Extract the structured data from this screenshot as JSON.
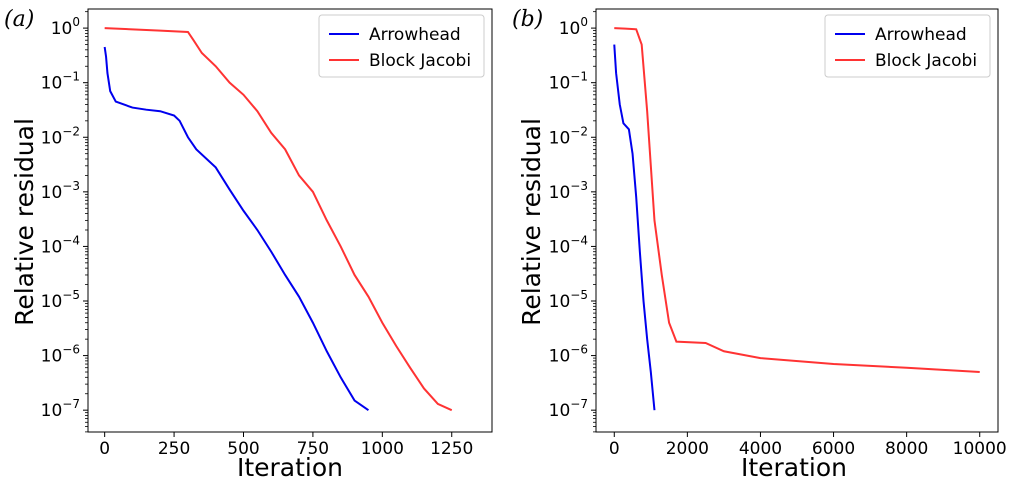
{
  "chart_data": [
    {
      "type": "line",
      "panel_label": "(a)",
      "xlabel": "Iteration",
      "ylabel": "Relative residual",
      "xlim": [
        -60,
        1395
      ],
      "ylim_log10": [
        -7.4,
        0.35
      ],
      "yscale": "log",
      "xticks": [
        0,
        250,
        500,
        750,
        1000,
        1250
      ],
      "yticks_exp": [
        0,
        -1,
        -2,
        -3,
        -4,
        -5,
        -6,
        -7
      ],
      "grid": false,
      "legend": {
        "position": "top-right",
        "entries": [
          {
            "label": "Arrowhead",
            "color": "#0000ee"
          },
          {
            "label": "Block Jacobi",
            "color": "#ff3333"
          }
        ]
      },
      "series": [
        {
          "name": "Arrowhead",
          "color": "#0000ee",
          "points": [
            [
              0,
              0.45
            ],
            [
              5,
              0.3
            ],
            [
              10,
              0.15
            ],
            [
              20,
              0.07
            ],
            [
              40,
              0.045
            ],
            [
              100,
              0.035
            ],
            [
              150,
              0.032
            ],
            [
              200,
              0.03
            ],
            [
              250,
              0.025
            ],
            [
              270,
              0.02
            ],
            [
              300,
              0.01
            ],
            [
              330,
              0.006
            ],
            [
              400,
              0.0028
            ],
            [
              450,
              0.0011
            ],
            [
              500,
              0.00045
            ],
            [
              550,
              0.0002
            ],
            [
              600,
              8e-05
            ],
            [
              650,
              3e-05
            ],
            [
              700,
              1.2e-05
            ],
            [
              750,
              4e-06
            ],
            [
              800,
              1.2e-06
            ],
            [
              850,
              4e-07
            ],
            [
              900,
              1.5e-07
            ],
            [
              950,
              1e-07
            ]
          ]
        },
        {
          "name": "Block Jacobi",
          "color": "#ff3333",
          "points": [
            [
              0,
              1.0
            ],
            [
              100,
              0.95
            ],
            [
              200,
              0.9
            ],
            [
              300,
              0.85
            ],
            [
              320,
              0.6
            ],
            [
              350,
              0.35
            ],
            [
              400,
              0.2
            ],
            [
              450,
              0.1
            ],
            [
              500,
              0.06
            ],
            [
              550,
              0.03
            ],
            [
              600,
              0.012
            ],
            [
              650,
              0.006
            ],
            [
              700,
              0.002
            ],
            [
              750,
              0.001
            ],
            [
              800,
              0.0003
            ],
            [
              850,
              0.0001
            ],
            [
              900,
              3e-05
            ],
            [
              950,
              1.2e-05
            ],
            [
              1000,
              4e-06
            ],
            [
              1050,
              1.5e-06
            ],
            [
              1100,
              6e-07
            ],
            [
              1150,
              2.5e-07
            ],
            [
              1200,
              1.3e-07
            ],
            [
              1250,
              1e-07
            ]
          ]
        }
      ]
    },
    {
      "type": "line",
      "panel_label": "(b)",
      "xlabel": "Iteration",
      "ylabel": "Relative residual",
      "xlim": [
        -500,
        10500
      ],
      "ylim_log10": [
        -7.4,
        0.35
      ],
      "yscale": "log",
      "xticks": [
        0,
        2000,
        4000,
        6000,
        8000,
        10000
      ],
      "yticks_exp": [
        0,
        -1,
        -2,
        -3,
        -4,
        -5,
        -6,
        -7
      ],
      "grid": false,
      "legend": {
        "position": "top-right",
        "entries": [
          {
            "label": "Arrowhead",
            "color": "#0000ee"
          },
          {
            "label": "Block Jacobi",
            "color": "#ff3333"
          }
        ]
      },
      "series": [
        {
          "name": "Arrowhead",
          "color": "#0000ee",
          "points": [
            [
              0,
              0.5
            ],
            [
              50,
              0.15
            ],
            [
              150,
              0.04
            ],
            [
              250,
              0.018
            ],
            [
              400,
              0.014
            ],
            [
              500,
              0.005
            ],
            [
              600,
              0.0008
            ],
            [
              700,
              8e-05
            ],
            [
              800,
              1e-05
            ],
            [
              900,
              2e-06
            ],
            [
              1000,
              5e-07
            ],
            [
              1100,
              1e-07
            ]
          ]
        },
        {
          "name": "Block Jacobi",
          "color": "#ff3333",
          "points": [
            [
              0,
              1.0
            ],
            [
              300,
              0.98
            ],
            [
              600,
              0.95
            ],
            [
              750,
              0.5
            ],
            [
              900,
              0.03
            ],
            [
              1000,
              0.003
            ],
            [
              1100,
              0.0003
            ],
            [
              1300,
              3e-05
            ],
            [
              1500,
              4e-06
            ],
            [
              1700,
              1.8e-06
            ],
            [
              2500,
              1.7e-06
            ],
            [
              3000,
              1.2e-06
            ],
            [
              4000,
              9e-07
            ],
            [
              6000,
              7e-07
            ],
            [
              8000,
              6e-07
            ],
            [
              10000,
              5e-07
            ]
          ]
        }
      ]
    }
  ]
}
